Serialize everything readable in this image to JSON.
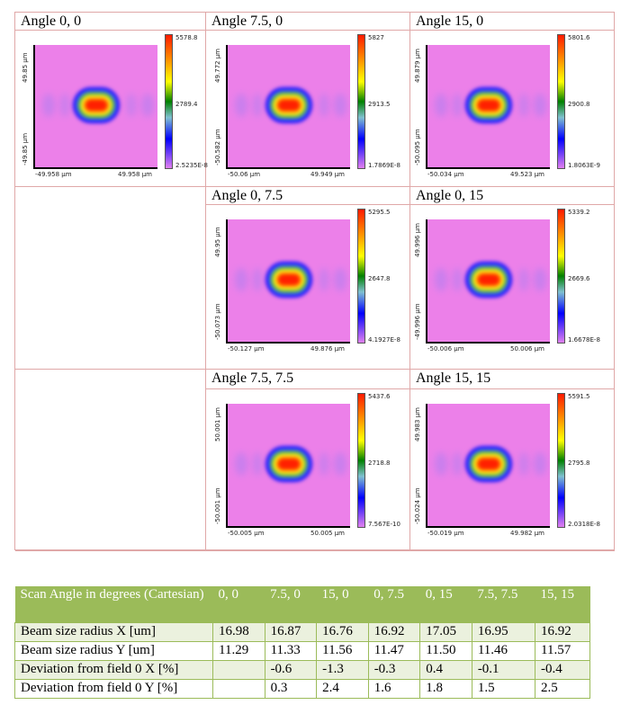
{
  "plots": [
    {
      "title": "Angle 0, 0",
      "y_top": "49.85 µm",
      "y_bot": "-49.85 µm",
      "x_left": "-49.958 µm",
      "x_right": "49.958 µm",
      "c_max": "5578.8",
      "c_mid": "2789.4",
      "c_min": "2.5235E-8"
    },
    {
      "title": "Angle 7.5, 0",
      "y_top": "49.772 µm",
      "y_bot": "-50.582 µm",
      "x_left": "-50.06 µm",
      "x_right": "49.949 µm",
      "c_max": "5827",
      "c_mid": "2913.5",
      "c_min": "1.7869E-8"
    },
    {
      "title": "Angle 15, 0",
      "y_top": "49.879 µm",
      "y_bot": "-50.095 µm",
      "x_left": "-50.034 µm",
      "x_right": "49.523 µm",
      "c_max": "5801.6",
      "c_mid": "2900.8",
      "c_min": "1.8063E-9"
    },
    {
      "title": "Angle 0, 7.5",
      "y_top": "49.95 µm",
      "y_bot": "-50.073 µm",
      "x_left": "-50.127 µm",
      "x_right": "49.876 µm",
      "c_max": "5295.5",
      "c_mid": "2647.8",
      "c_min": "4.1927E-8"
    },
    {
      "title": "Angle 0, 15",
      "y_top": "49.996 µm",
      "y_bot": "-49.996 µm",
      "x_left": "-50.006 µm",
      "x_right": "50.006 µm",
      "c_max": "5339.2",
      "c_mid": "2669.6",
      "c_min": "1.6678E-8"
    },
    {
      "title": "Angle 7.5, 7.5",
      "y_top": "50.001 µm",
      "y_bot": "-50.001 µm",
      "x_left": "-50.005 µm",
      "x_right": "50.005 µm",
      "c_max": "5437.6",
      "c_mid": "2718.8",
      "c_min": "7.567E-10"
    },
    {
      "title": "Angle 15, 15",
      "y_top": "49.983 µm",
      "y_bot": "-50.024 µm",
      "x_left": "-50.019 µm",
      "x_right": "49.982 µm",
      "c_max": "5591.5",
      "c_mid": "2795.8",
      "c_min": "2.0318E-8"
    }
  ],
  "table": {
    "header": [
      "Scan Angle in degrees (Cartesian)",
      "0, 0",
      "7.5, 0",
      "15, 0",
      "0, 7.5",
      "0, 15",
      "7.5, 7.5",
      "15, 15"
    ],
    "rows": [
      [
        "Beam size radius X [um]",
        "16.98",
        "16.87",
        "16.76",
        "16.92",
        "17.05",
        "16.95",
        "16.92"
      ],
      [
        "Beam size radius Y [um]",
        "11.29",
        "11.33",
        "11.56",
        "11.47",
        "11.50",
        "11.46",
        "11.57"
      ],
      [
        "Deviation from field 0 X [%]",
        "",
        "-0.6",
        "-1.3",
        "-0.3",
        "0.4",
        "-0.1",
        "-0.4"
      ],
      [
        "Deviation from field 0 Y [%]",
        "",
        "0.3",
        "2.4",
        "1.6",
        "1.8",
        "1.5",
        "2.5"
      ]
    ]
  }
}
